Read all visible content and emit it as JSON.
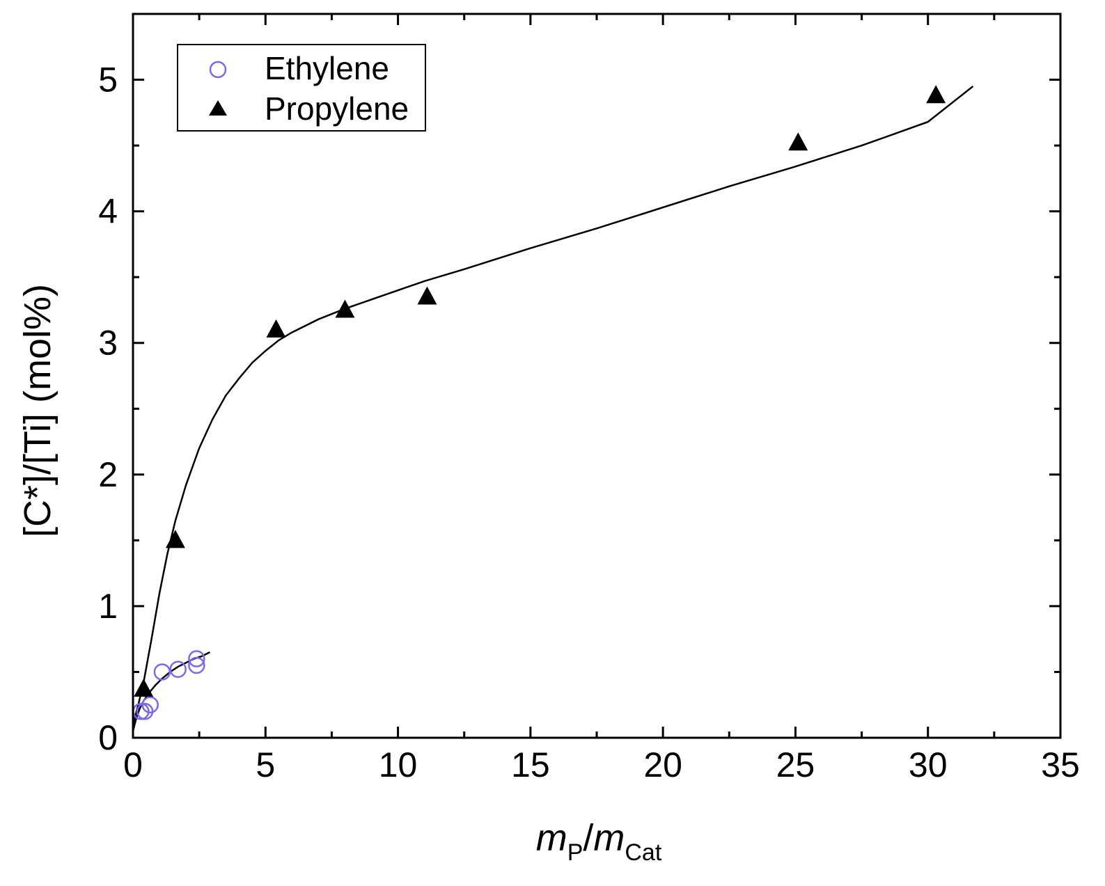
{
  "chart_data": {
    "type": "scatter",
    "xlabel": {
      "main": "m",
      "sub1": "P",
      "sep": "/",
      "main2": "m",
      "sub2": "Cat"
    },
    "ylabel": "[C*]/[Ti] (mol%)",
    "xlim": [
      0,
      35
    ],
    "ylim": [
      0,
      5.5
    ],
    "xticks": [
      0,
      5,
      10,
      15,
      20,
      25,
      30,
      35
    ],
    "yticks": [
      0,
      1,
      2,
      3,
      4,
      5
    ],
    "grid": false,
    "legend_position": "top-left",
    "series": [
      {
        "name": "Ethylene",
        "marker": "open-circle",
        "color": "#7b68ee",
        "x": [
          0.3,
          0.45,
          0.65,
          1.1,
          1.7,
          2.4,
          2.4
        ],
        "y": [
          0.2,
          0.2,
          0.25,
          0.5,
          0.52,
          0.55,
          0.6
        ],
        "fit_x": [
          0.0,
          0.1,
          0.25,
          0.4,
          0.6,
          0.85,
          1.1,
          1.4,
          1.7,
          2.0,
          2.3,
          2.6,
          2.9
        ],
        "fit_y": [
          0.05,
          0.13,
          0.22,
          0.28,
          0.34,
          0.4,
          0.45,
          0.5,
          0.54,
          0.57,
          0.6,
          0.62,
          0.65
        ]
      },
      {
        "name": "Propylene",
        "marker": "filled-triangle",
        "color": "#000000",
        "x": [
          0.4,
          1.6,
          5.4,
          8.0,
          11.1,
          25.1,
          30.3
        ],
        "y": [
          0.37,
          1.5,
          3.1,
          3.25,
          3.35,
          4.52,
          4.88
        ],
        "fit_x": [
          0.0,
          0.2,
          0.4,
          0.7,
          1.0,
          1.3,
          1.6,
          2.0,
          2.5,
          3.0,
          3.5,
          4.0,
          4.5,
          5.0,
          5.5,
          6.0,
          7.0,
          8.0,
          9.0,
          10.0,
          11.0,
          12.5,
          15.0,
          17.5,
          20.0,
          22.5,
          25.0,
          27.5,
          30.0,
          31.7
        ],
        "fit_y": [
          0.1,
          0.25,
          0.42,
          0.75,
          1.1,
          1.4,
          1.65,
          1.92,
          2.2,
          2.42,
          2.6,
          2.73,
          2.85,
          2.94,
          3.02,
          3.08,
          3.18,
          3.26,
          3.33,
          3.4,
          3.47,
          3.56,
          3.72,
          3.87,
          4.03,
          4.19,
          4.34,
          4.5,
          4.68,
          4.95
        ]
      }
    ]
  }
}
